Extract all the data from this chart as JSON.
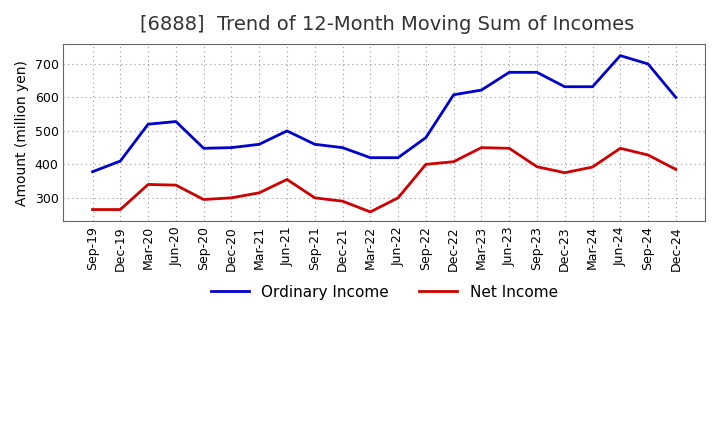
{
  "title": "[6888]  Trend of 12-Month Moving Sum of Incomes",
  "ylabel": "Amount (million yen)",
  "x_labels": [
    "Sep-19",
    "Dec-19",
    "Mar-20",
    "Jun-20",
    "Sep-20",
    "Dec-20",
    "Mar-21",
    "Jun-21",
    "Sep-21",
    "Dec-21",
    "Mar-22",
    "Jun-22",
    "Sep-22",
    "Dec-22",
    "Mar-23",
    "Jun-23",
    "Sep-23",
    "Dec-23",
    "Mar-24",
    "Jun-24",
    "Sep-24",
    "Dec-24"
  ],
  "ordinary_income": [
    378,
    410,
    520,
    528,
    448,
    450,
    460,
    500,
    460,
    450,
    420,
    420,
    480,
    608,
    622,
    675,
    675,
    632,
    632,
    725,
    700,
    600
  ],
  "net_income": [
    265,
    265,
    340,
    338,
    295,
    300,
    315,
    355,
    300,
    290,
    258,
    300,
    400,
    408,
    450,
    448,
    393,
    375,
    392,
    448,
    428,
    385
  ],
  "ordinary_color": "#0000cc",
  "net_color": "#cc0000",
  "ylim": [
    230,
    760
  ],
  "yticks": [
    300,
    400,
    500,
    600,
    700
  ],
  "grid_color": "#999999",
  "background_color": "#ffffff",
  "plot_bg_color": "#ffffff",
  "title_fontsize": 14,
  "title_color": "#333333",
  "label_fontsize": 10,
  "tick_fontsize": 9,
  "legend_fontsize": 11
}
